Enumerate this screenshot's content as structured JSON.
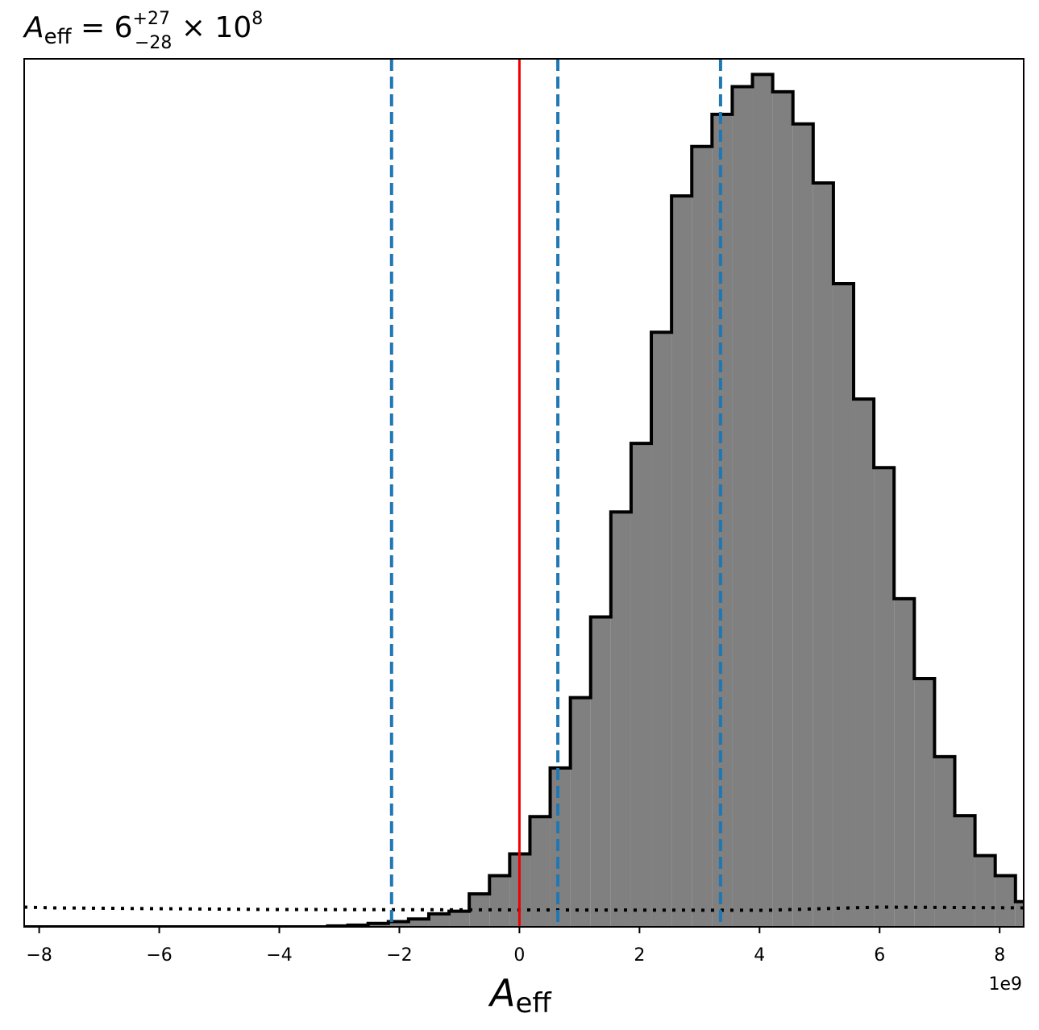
{
  "chart_data": {
    "type": "histogram",
    "title": {
      "symbol": "A",
      "symbol_subscript": "eff",
      "equals": " = 6",
      "upper_error": "+27",
      "lower_error": "−28",
      "multiplier": " × 10",
      "exponent": "8"
    },
    "xlabel": {
      "symbol": "A",
      "subscript": "eff"
    },
    "ylabel": "",
    "x_offset_label": "1e9",
    "xlim": [
      -8.25,
      8.4
    ],
    "ylim": [
      0,
      1.0
    ],
    "xticks": [
      -8,
      -6,
      -4,
      -2,
      0,
      2,
      4,
      6,
      8
    ],
    "xtick_labels": [
      "−8",
      "−6",
      "−4",
      "−2",
      "0",
      "2",
      "4",
      "6",
      "8"
    ],
    "bin_width": 0.337,
    "bin_start": -8.25,
    "bin_heights": [
      0.0,
      0.0,
      0.0,
      0.0,
      0.0,
      0.0,
      0.0,
      0.0,
      0.0,
      0.0,
      0.0,
      0.0,
      0.0,
      0.0,
      0.0,
      0.001,
      0.002,
      0.004,
      0.006,
      0.009,
      0.015,
      0.018,
      0.038,
      0.059,
      0.084,
      0.127,
      0.183,
      0.264,
      0.357,
      0.478,
      0.557,
      0.685,
      0.842,
      0.899,
      0.936,
      0.968,
      0.982,
      0.962,
      0.925,
      0.857,
      0.741,
      0.608,
      0.529,
      0.378,
      0.286,
      0.196,
      0.128,
      0.082,
      0.059,
      0.029,
      0.016,
      0.011,
      0.007,
      0.003,
      0.001,
      0.0,
      0.0,
      0.0,
      0.0,
      0.0,
      0.0,
      0.0,
      0.0,
      0.0,
      0.0,
      0.0,
      0.0,
      0.0,
      0.0,
      0.0,
      0.0
    ],
    "prior_line": {
      "style": "dotted",
      "color": "#000000",
      "level": 0.02
    },
    "true_value_line": {
      "x": 0.0,
      "color": "#ee0000",
      "style": "solid"
    },
    "quantile_lines": {
      "x": [
        -2.13,
        0.64,
        3.35
      ],
      "color": "#1f77b4",
      "style": "dashed"
    },
    "fill_color": "#808080",
    "edge_color": "#000000"
  }
}
